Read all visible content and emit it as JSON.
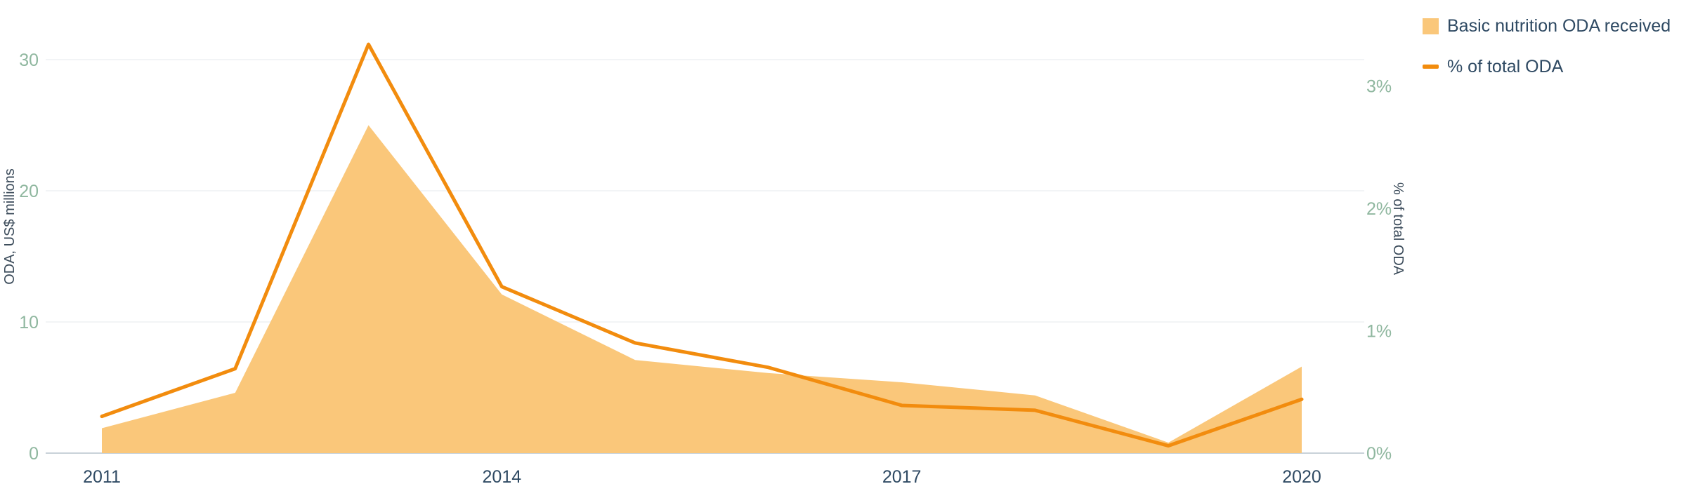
{
  "chart_data": {
    "type": "area",
    "x": [
      2011,
      2012,
      2013,
      2014,
      2015,
      2016,
      2017,
      2018,
      2019,
      2020
    ],
    "x_ticks": [
      "2011",
      "2014",
      "2017",
      "2020"
    ],
    "series": [
      {
        "name": "Basic nutrition ODA received",
        "type": "area",
        "axis": "left",
        "color": "#fac77a",
        "values": [
          1.9,
          4.6,
          25.0,
          12.1,
          7.1,
          6.1,
          5.4,
          4.4,
          0.8,
          6.6
        ]
      },
      {
        "name": "% of total ODA",
        "type": "line",
        "axis": "right",
        "color": "#f28c0e",
        "values": [
          0.3,
          0.69,
          3.34,
          1.36,
          0.9,
          0.7,
          0.39,
          0.35,
          0.06,
          0.44
        ]
      }
    ],
    "y_left": {
      "label": "ODA, US$ millions",
      "ticks": [
        "0",
        "10",
        "20",
        "30"
      ],
      "tick_values": [
        0,
        10,
        20,
        30
      ],
      "range": [
        0,
        32
      ]
    },
    "y_right": {
      "label": "% of total ODA",
      "ticks": [
        "0%",
        "1%",
        "2%",
        "3%"
      ],
      "tick_values": [
        0,
        1,
        2,
        3
      ],
      "range": [
        0,
        3.2
      ]
    },
    "grid": true,
    "legend_position": "top-right"
  },
  "legend": {
    "area_label": "Basic nutrition ODA received",
    "line_label": "% of total ODA",
    "area_color": "#fac77a",
    "line_color": "#f28c0e"
  }
}
